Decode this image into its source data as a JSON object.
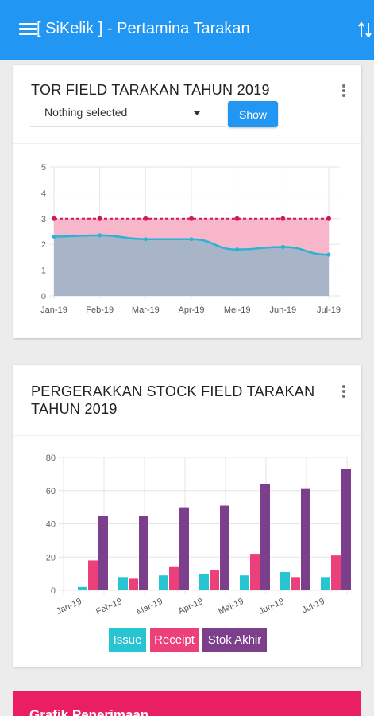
{
  "app": {
    "title": "[ SiKelik ] - Pertamina Tarakan"
  },
  "tor_card": {
    "title": "TOR FIELD TARAKAN TAHUN 2019",
    "select_value": "Nothing selected",
    "show_label": "Show"
  },
  "stock_card": {
    "title_line1": "PERGERAKKAN STOCK FIELD TARAKAN",
    "title_line2": "TAHUN 2019"
  },
  "bottom_card": {
    "label": "Grafik Penerimaan"
  },
  "colors": {
    "appbar": "#2196f3",
    "tor_target_fill": "#f7b6c9",
    "tor_target_line": "#d1195a",
    "tor_actual_fill": "#a8b4c8",
    "tor_actual_line": "#2ab3d4",
    "issue": "#27c4d2",
    "receipt": "#ec407a",
    "stok_akhir": "#7b3f8c",
    "bottom_card": "#e91e63"
  },
  "chart_data": [
    {
      "type": "area",
      "categories": [
        "Jan-19",
        "Feb-19",
        "Mar-19",
        "Apr-19",
        "Mei-19",
        "Jun-19",
        "Jul-19"
      ],
      "series": [
        {
          "values": [
            3,
            3,
            3,
            3,
            3,
            3,
            3
          ]
        },
        {
          "values": [
            2.3,
            2.35,
            2.2,
            2.2,
            1.8,
            1.9,
            1.6
          ]
        }
      ],
      "ylim": [
        0,
        5
      ],
      "yticks": [
        0,
        1,
        2,
        3,
        4,
        5
      ],
      "grid": true
    },
    {
      "type": "bar",
      "categories": [
        "Jan-19",
        "Feb-19",
        "Mar-19",
        "Apr-19",
        "Mei-19",
        "Jun-19",
        "Jul-19"
      ],
      "series": [
        {
          "name": "Issue",
          "values": [
            2,
            8,
            9,
            10,
            9,
            11,
            8
          ]
        },
        {
          "name": "Receipt",
          "values": [
            18,
            7,
            14,
            12,
            22,
            8,
            21
          ]
        },
        {
          "name": "Stok Akhir",
          "values": [
            45,
            45,
            50,
            51,
            64,
            61,
            73
          ]
        }
      ],
      "ylim": [
        0,
        80
      ],
      "yticks": [
        0,
        20,
        40,
        60,
        80
      ],
      "grid": true,
      "legend": "bottom"
    }
  ]
}
